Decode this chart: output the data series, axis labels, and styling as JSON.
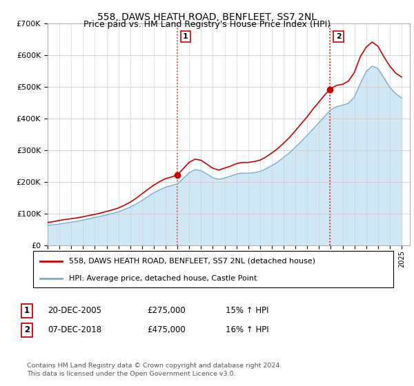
{
  "title": "558, DAWS HEATH ROAD, BENFLEET, SS7 2NL",
  "subtitle": "Price paid vs. HM Land Registry's House Price Index (HPI)",
  "legend_line1": "558, DAWS HEATH ROAD, BENFLEET, SS7 2NL (detached house)",
  "legend_line2": "HPI: Average price, detached house, Castle Point",
  "sale1_date": "20-DEC-2005",
  "sale1_price": "£275,000",
  "sale1_hpi": "15% ↑ HPI",
  "sale1_year": 2005.97,
  "sale1_value": 275000,
  "sale2_date": "07-DEC-2018",
  "sale2_price": "£475,000",
  "sale2_hpi": "16% ↑ HPI",
  "sale2_year": 2018.93,
  "sale2_value": 475000,
  "footnote1": "Contains HM Land Registry data © Crown copyright and database right 2024.",
  "footnote2": "This data is licensed under the Open Government Licence v3.0.",
  "red_color": "#cc0000",
  "blue_color": "#7aadcc",
  "blue_fill": "#d0e8f5",
  "ylim": [
    0,
    700000
  ],
  "yticks": [
    0,
    100000,
    200000,
    300000,
    400000,
    500000,
    600000,
    700000
  ],
  "ytick_labels": [
    "£0",
    "£100K",
    "£200K",
    "£300K",
    "£400K",
    "£500K",
    "£600K",
    "£700K"
  ],
  "hpi_years": [
    1995.0,
    1995.5,
    1996.0,
    1996.5,
    1997.0,
    1997.5,
    1998.0,
    1998.5,
    1999.0,
    1999.5,
    2000.0,
    2000.5,
    2001.0,
    2001.5,
    2002.0,
    2002.5,
    2003.0,
    2003.5,
    2004.0,
    2004.5,
    2005.0,
    2005.5,
    2006.0,
    2006.5,
    2007.0,
    2007.5,
    2008.0,
    2008.5,
    2009.0,
    2009.5,
    2010.0,
    2010.5,
    2011.0,
    2011.5,
    2012.0,
    2012.5,
    2013.0,
    2013.5,
    2014.0,
    2014.5,
    2015.0,
    2015.5,
    2016.0,
    2016.5,
    2017.0,
    2017.5,
    2018.0,
    2018.5,
    2019.0,
    2019.5,
    2020.0,
    2020.5,
    2021.0,
    2021.5,
    2022.0,
    2022.5,
    2023.0,
    2023.5,
    2024.0,
    2024.5,
    2025.0
  ],
  "hpi_values": [
    62000,
    64000,
    66000,
    69000,
    72000,
    75000,
    79000,
    83000,
    87000,
    91000,
    95000,
    100000,
    105000,
    112000,
    120000,
    130000,
    141000,
    153000,
    165000,
    175000,
    183000,
    188000,
    193000,
    210000,
    228000,
    238000,
    235000,
    225000,
    213000,
    208000,
    212000,
    218000,
    225000,
    228000,
    228000,
    230000,
    234000,
    242000,
    252000,
    263000,
    278000,
    292000,
    310000,
    328000,
    348000,
    368000,
    388000,
    408000,
    428000,
    438000,
    442000,
    448000,
    468000,
    510000,
    548000,
    565000,
    558000,
    528000,
    498000,
    478000,
    465000
  ],
  "red_years": [
    1995.0,
    1995.5,
    1996.0,
    1996.5,
    1997.0,
    1997.5,
    1998.0,
    1998.5,
    1999.0,
    1999.5,
    2000.0,
    2000.5,
    2001.0,
    2001.5,
    2002.0,
    2002.5,
    2003.0,
    2003.5,
    2004.0,
    2004.5,
    2005.0,
    2005.5,
    2006.0,
    2006.5,
    2007.0,
    2007.5,
    2008.0,
    2008.5,
    2009.0,
    2009.5,
    2010.0,
    2010.5,
    2011.0,
    2011.5,
    2012.0,
    2012.5,
    2013.0,
    2013.5,
    2014.0,
    2014.5,
    2015.0,
    2015.5,
    2016.0,
    2016.5,
    2017.0,
    2017.5,
    2018.0,
    2018.5,
    2019.0,
    2019.5,
    2020.0,
    2020.5,
    2021.0,
    2021.5,
    2022.0,
    2022.5,
    2023.0,
    2023.5,
    2024.0,
    2024.5,
    2025.0
  ],
  "red_values": [
    72000,
    75000,
    78000,
    81000,
    84000,
    87000,
    91000,
    95000,
    99000,
    103000,
    108000,
    113000,
    118000,
    126000,
    136000,
    148000,
    162000,
    176000,
    190000,
    201000,
    210000,
    215000,
    222000,
    242000,
    262000,
    272000,
    268000,
    255000,
    242000,
    236000,
    242000,
    248000,
    256000,
    260000,
    260000,
    262000,
    266000,
    276000,
    289000,
    303000,
    320000,
    338000,
    360000,
    382000,
    404000,
    428000,
    450000,
    472000,
    492000,
    502000,
    505000,
    515000,
    542000,
    592000,
    622000,
    638000,
    625000,
    592000,
    562000,
    540000,
    528000
  ],
  "xlim_left": 1995.0,
  "xlim_right": 2025.7
}
